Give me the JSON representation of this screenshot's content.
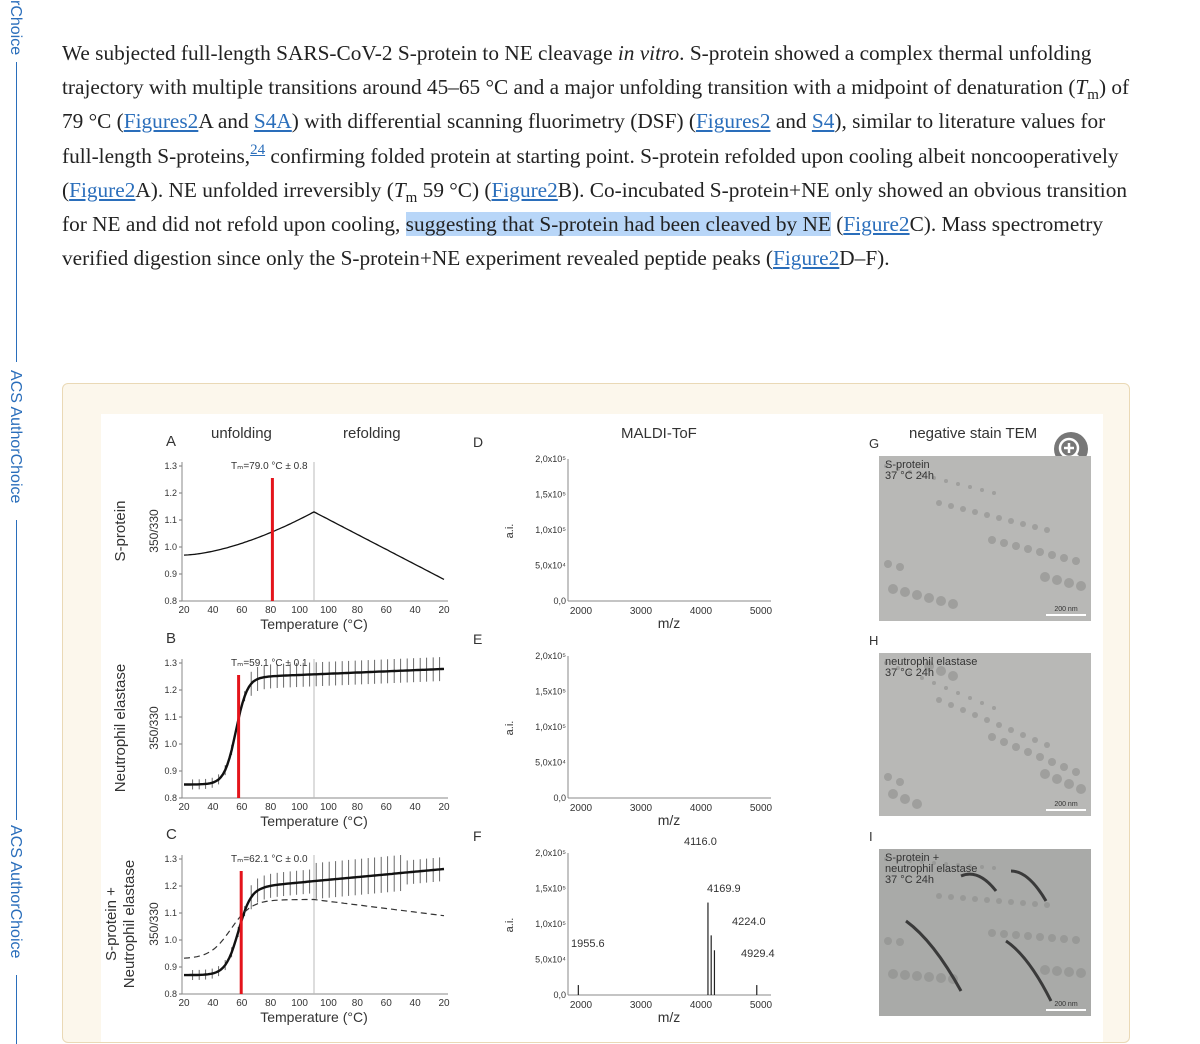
{
  "sidebar": [
    "rChoice",
    "ACS AuthorChoice",
    "ACS AuthorChoice"
  ],
  "paragraph": [
    "We subjected full-length SARS-CoV-2 S-protein to NE cleavage ",
    "in vitro",
    ". S-protein showed a complex thermal unfolding trajectory with multiple transitions around 45–65 °C and a major unfolding transition with a midpoint of denaturation (",
    "T",
    "m",
    ") of 79 °C (",
    "Figures2",
    "A and ",
    "S4A",
    ") with differential scanning fluorimetry (DSF) (",
    "Figures2",
    " and ",
    "S4",
    "), similar to literature values for full-length S-proteins,",
    "24",
    " confirming folded protein at starting point. S-protein refolded upon cooling albeit noncooperatively (",
    "Figure2",
    "A). NE unfolded irreversibly (",
    "T",
    "m",
    " 59 °C) (",
    "Figure2",
    "B). Co-incubated S-protein+NE only showed an obvious transition for NE and did not refold upon cooling, ",
    "suggesting that S-protein had been cleaved by NE",
    " (",
    "Figure2",
    "C). Mass spectrometry verified digestion since only the S-protein+NE experiment revealed peptide peaks (",
    "Figure2",
    "D–F)."
  ],
  "figure": {
    "dsf": {
      "titles": [
        "unfolding",
        "refolding"
      ],
      "y_label": "350/330",
      "x_label": "Temperature (°C)",
      "yticks": [
        "1.3",
        "1.2",
        "1.1",
        "1.0",
        "0.9",
        "0.8"
      ],
      "xticks": [
        "20",
        "40",
        "60",
        "80",
        "100",
        "100",
        "80",
        "60",
        "40",
        "20"
      ],
      "panels": [
        {
          "letter": "A",
          "row_label": [
            "S-protein"
          ],
          "tm": "Tₘ=79.0 °C ± 0.8"
        },
        {
          "letter": "B",
          "row_label": [
            "Neutrophil elastase"
          ],
          "tm": "Tₘ=59.1 °C ± 0.1"
        },
        {
          "letter": "C",
          "row_label": [
            "S-protein +",
            "Neutrophil elastase"
          ],
          "tm": "Tₘ=62.1 °C ± 0.0"
        }
      ]
    },
    "ms": {
      "title": "MALDI-ToF",
      "y_label": "a.i.",
      "x_label": "m/z",
      "yticks": [
        "2,0x10⁵",
        "1,5x10⁵",
        "1,0x10⁵",
        "5,0x10⁴",
        "0,0"
      ],
      "xticks": [
        "2000",
        "3000",
        "4000",
        "5000"
      ],
      "panels": [
        {
          "letter": "D",
          "peaks": []
        },
        {
          "letter": "E",
          "peaks": []
        },
        {
          "letter": "F",
          "peaks": [
            "4116.0",
            "4169.9",
            "4224.0",
            "4929.4",
            "1955.6"
          ]
        }
      ]
    },
    "tem": {
      "title": "negative stain TEM",
      "panels": [
        {
          "letter": "G",
          "caption": [
            "S-protein",
            "37 °C 24h"
          ],
          "scale": "200 nm"
        },
        {
          "letter": "H",
          "caption": [
            "neutrophil elastase",
            "37 °C 24h"
          ],
          "scale": "200 nm"
        },
        {
          "letter": "I",
          "caption": [
            "S-protein +",
            "neutrophil elastase",
            "37 °C 24h"
          ],
          "scale": "200 nm"
        }
      ]
    }
  }
}
